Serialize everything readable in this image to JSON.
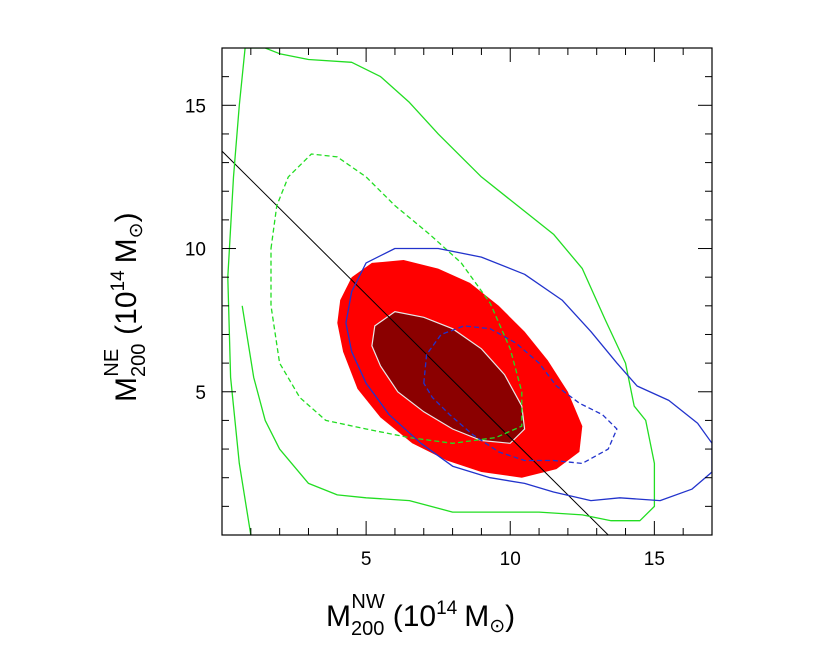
{
  "chart_data": {
    "type": "contour",
    "title": "",
    "x_axis": {
      "symbol": "M",
      "sub": "200",
      "sup": "NW",
      "unit_text": "(10",
      "unit_exp": "14",
      "unit_suffix": "M",
      "sun_symbol": "⊙",
      "close": ")",
      "range": [
        0,
        17
      ],
      "ticks": [
        5,
        10,
        15
      ],
      "tick_labels": [
        "5",
        "10",
        "15"
      ]
    },
    "y_axis": {
      "symbol": "M",
      "sub": "200",
      "sup": "NE",
      "unit_text": "(10",
      "unit_exp": "14",
      "unit_suffix": "M",
      "sun_symbol": "⊙",
      "close": ")",
      "range": [
        0,
        17
      ],
      "ticks": [
        5,
        10,
        15
      ],
      "tick_labels": [
        "5",
        "10",
        "15"
      ]
    },
    "reference_line": {
      "points": [
        [
          0,
          13.4
        ],
        [
          13.4,
          0
        ]
      ],
      "color": "#000000"
    },
    "filled_regions": [
      {
        "name": "joint-outer-fill",
        "color": "#ff0000",
        "points": [
          [
            4.1,
            8.2
          ],
          [
            4.5,
            9.0
          ],
          [
            5.2,
            9.5
          ],
          [
            6.3,
            9.6
          ],
          [
            7.5,
            9.3
          ],
          [
            8.6,
            8.8
          ],
          [
            9.6,
            8.0
          ],
          [
            10.5,
            7.1
          ],
          [
            11.3,
            6.1
          ],
          [
            12.0,
            5.0
          ],
          [
            12.5,
            3.8
          ],
          [
            12.4,
            2.9
          ],
          [
            11.6,
            2.3
          ],
          [
            10.4,
            2.0
          ],
          [
            9.0,
            2.2
          ],
          [
            7.8,
            2.6
          ],
          [
            6.6,
            3.2
          ],
          [
            5.5,
            4.1
          ],
          [
            4.7,
            5.1
          ],
          [
            4.2,
            6.4
          ],
          [
            4.0,
            7.4
          ]
        ],
        "stroke": "none"
      },
      {
        "name": "joint-inner-fill",
        "color": "#8b0000",
        "points": [
          [
            5.3,
            7.3
          ],
          [
            6.0,
            7.8
          ],
          [
            7.0,
            7.6
          ],
          [
            8.0,
            7.2
          ],
          [
            9.0,
            6.5
          ],
          [
            9.8,
            5.6
          ],
          [
            10.4,
            4.5
          ],
          [
            10.5,
            3.7
          ],
          [
            10.0,
            3.2
          ],
          [
            9.0,
            3.3
          ],
          [
            8.0,
            3.7
          ],
          [
            7.0,
            4.3
          ],
          [
            6.1,
            5.0
          ],
          [
            5.5,
            5.9
          ],
          [
            5.2,
            6.6
          ]
        ],
        "stroke": "#e8e8e8"
      }
    ],
    "contours": [
      {
        "name": "green-outer-contour",
        "color": "#22dd22",
        "dash": false,
        "closed": false,
        "points": [
          [
            1.0,
            0.0
          ],
          [
            0.6,
            2.5
          ],
          [
            0.3,
            5.5
          ],
          [
            0.2,
            9.0
          ],
          [
            0.4,
            12.5
          ],
          [
            0.6,
            15.0
          ],
          [
            0.8,
            17.0
          ],
          [
            1.5,
            17.0
          ],
          [
            2.0,
            16.8
          ],
          [
            3.0,
            16.6
          ],
          [
            4.5,
            16.5
          ],
          [
            5.5,
            16.0
          ],
          [
            6.5,
            15.1
          ],
          [
            7.5,
            14.0
          ],
          [
            9.0,
            12.5
          ],
          [
            10.5,
            11.3
          ],
          [
            11.5,
            10.5
          ],
          [
            12.5,
            9.3
          ],
          [
            13.3,
            7.5
          ],
          [
            14.0,
            6.0
          ],
          [
            14.3,
            4.5
          ],
          [
            14.7,
            4.0
          ],
          [
            15.0,
            2.5
          ],
          [
            15.0,
            1.0
          ],
          [
            14.5,
            0.5
          ],
          [
            13.5,
            0.5
          ],
          [
            12.5,
            0.7
          ],
          [
            11.0,
            0.8
          ],
          [
            9.5,
            0.8
          ],
          [
            8.0,
            0.8
          ],
          [
            6.5,
            1.2
          ],
          [
            5.0,
            1.3
          ],
          [
            4.0,
            1.4
          ],
          [
            3.0,
            1.8
          ],
          [
            2.0,
            3.0
          ],
          [
            1.5,
            4.0
          ],
          [
            1.1,
            5.5
          ],
          [
            0.7,
            8.0
          ]
        ]
      },
      {
        "name": "green-inner-contour",
        "color": "#22dd22",
        "dash": true,
        "closed": true,
        "points": [
          [
            1.7,
            10.0
          ],
          [
            1.9,
            11.5
          ],
          [
            2.3,
            12.5
          ],
          [
            3.1,
            13.3
          ],
          [
            4.0,
            13.2
          ],
          [
            5.0,
            12.5
          ],
          [
            6.0,
            11.5
          ],
          [
            7.2,
            10.5
          ],
          [
            8.3,
            9.5
          ],
          [
            9.3,
            8.1
          ],
          [
            10.0,
            6.5
          ],
          [
            10.4,
            5.0
          ],
          [
            10.4,
            3.8
          ],
          [
            9.5,
            3.4
          ],
          [
            8.0,
            3.2
          ],
          [
            6.5,
            3.4
          ],
          [
            5.0,
            3.7
          ],
          [
            3.6,
            4.0
          ],
          [
            2.7,
            4.8
          ],
          [
            2.0,
            6.0
          ],
          [
            1.7,
            8.0
          ]
        ]
      },
      {
        "name": "blue-outer-contour",
        "color": "#2233cc",
        "dash": false,
        "closed": false,
        "points": [
          [
            4.3,
            7.4
          ],
          [
            4.5,
            8.5
          ],
          [
            5.0,
            9.5
          ],
          [
            6.0,
            10.0
          ],
          [
            7.5,
            10.0
          ],
          [
            9.0,
            9.7
          ],
          [
            10.5,
            9.1
          ],
          [
            11.8,
            8.2
          ],
          [
            12.8,
            7.1
          ],
          [
            13.7,
            6.0
          ],
          [
            14.4,
            5.2
          ],
          [
            15.5,
            4.7
          ],
          [
            16.5,
            3.9
          ],
          [
            17.0,
            3.2
          ],
          [
            17.0,
            2.2
          ],
          [
            16.3,
            1.6
          ],
          [
            15.2,
            1.2
          ],
          [
            13.8,
            1.3
          ],
          [
            12.8,
            1.2
          ],
          [
            11.5,
            1.5
          ],
          [
            10.5,
            1.8
          ],
          [
            9.3,
            2.0
          ],
          [
            8.0,
            2.4
          ],
          [
            6.9,
            3.2
          ],
          [
            5.8,
            4.2
          ],
          [
            5.0,
            5.3
          ],
          [
            4.5,
            6.4
          ],
          [
            4.3,
            7.4
          ]
        ]
      },
      {
        "name": "blue-inner-contour",
        "color": "#2233cc",
        "dash": true,
        "closed": true,
        "points": [
          [
            7.0,
            5.3
          ],
          [
            7.1,
            6.3
          ],
          [
            7.6,
            7.0
          ],
          [
            8.4,
            7.3
          ],
          [
            9.3,
            7.2
          ],
          [
            10.2,
            6.7
          ],
          [
            11.0,
            6.0
          ],
          [
            11.6,
            5.2
          ],
          [
            12.4,
            4.6
          ],
          [
            13.2,
            4.2
          ],
          [
            13.7,
            3.7
          ],
          [
            13.4,
            3.0
          ],
          [
            12.5,
            2.5
          ],
          [
            11.5,
            2.6
          ],
          [
            10.5,
            2.6
          ],
          [
            9.6,
            2.9
          ],
          [
            8.7,
            3.5
          ],
          [
            7.9,
            4.2
          ],
          [
            7.3,
            4.8
          ]
        ]
      }
    ]
  }
}
